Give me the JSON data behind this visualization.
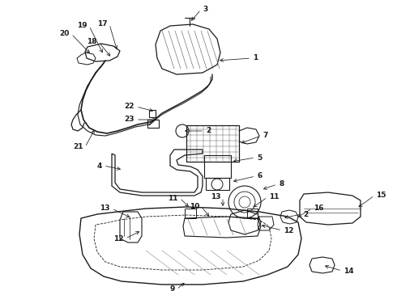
{
  "background_color": "#ffffff",
  "line_color": "#1a1a1a",
  "fig_width": 4.9,
  "fig_height": 3.6,
  "dpi": 100,
  "imgW": 490,
  "imgH": 360
}
